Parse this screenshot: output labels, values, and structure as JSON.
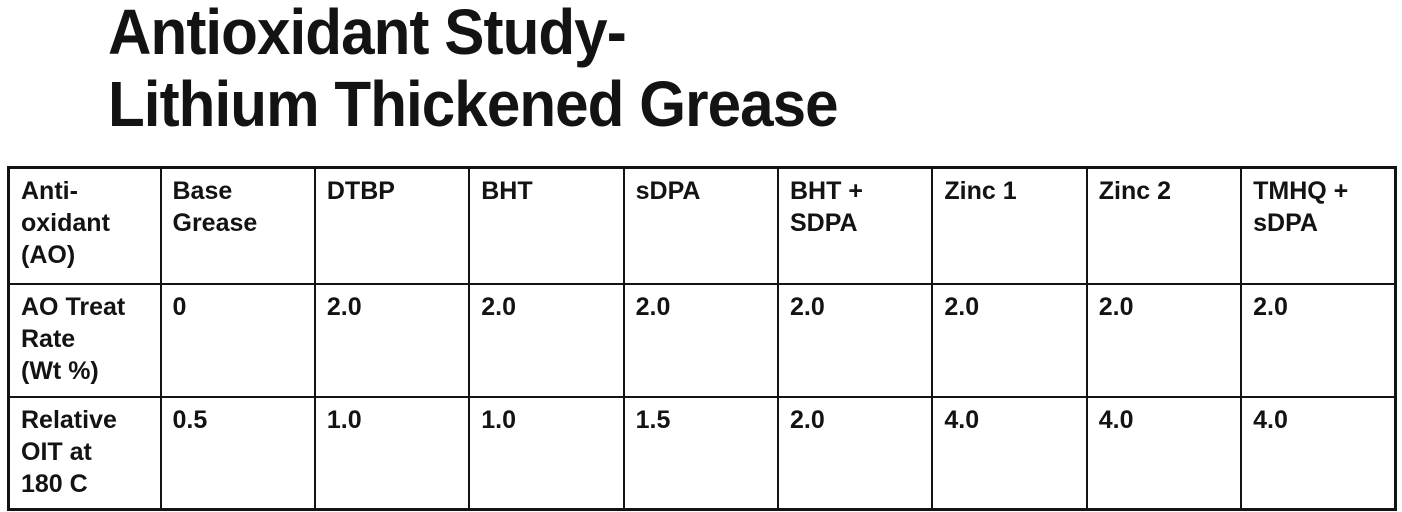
{
  "title": {
    "line1": "Antioxidant Study-",
    "line2": "Lithium Thickened Grease"
  },
  "table": {
    "headers": [
      "Anti-\noxidant\n(AO)",
      "Base\nGrease",
      "DTBP",
      "BHT",
      "sDPA",
      "BHT +\nSDPA",
      "Zinc 1",
      "Zinc 2",
      "TMHQ +\nsDPA"
    ],
    "rows": [
      {
        "label": "AO Treat\nRate\n(Wt %)",
        "values": [
          "0",
          "2.0",
          "2.0",
          "2.0",
          "2.0",
          "2.0",
          "2.0",
          "2.0"
        ]
      },
      {
        "label": "Relative\nOIT at\n180 C",
        "values": [
          "0.5",
          "1.0",
          "1.0",
          "1.5",
          "2.0",
          "4.0",
          "4.0",
          "4.0"
        ]
      }
    ]
  },
  "chart_data": {
    "type": "table",
    "title": "Antioxidant Study- Lithium Thickened Grease",
    "columns": [
      "Anti-oxidant (AO)",
      "Base Grease",
      "DTBP",
      "BHT",
      "sDPA",
      "BHT + SDPA",
      "Zinc 1",
      "Zinc 2",
      "TMHQ + sDPA"
    ],
    "rows": [
      {
        "label": "AO Treat Rate (Wt %)",
        "values": [
          0,
          2.0,
          2.0,
          2.0,
          2.0,
          2.0,
          2.0,
          2.0
        ]
      },
      {
        "label": "Relative OIT at 180 C",
        "values": [
          0.5,
          1.0,
          1.0,
          1.5,
          2.0,
          4.0,
          4.0,
          4.0
        ]
      }
    ]
  },
  "colors": {
    "text": "#131313",
    "border": "#131313",
    "background": "#ffffff"
  }
}
